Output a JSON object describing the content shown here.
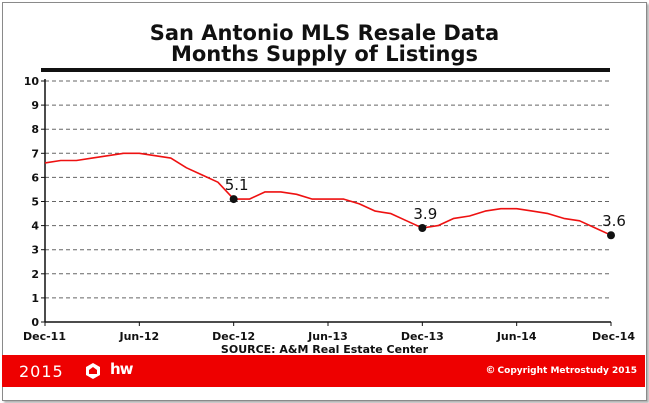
{
  "chart_data": {
    "type": "line",
    "title": "San Antonio MLS Resale Data",
    "subtitle": "Months Supply of Listings",
    "xlabel": "",
    "ylabel": "",
    "ylim": [
      0,
      10
    ],
    "yticks": [
      0,
      1,
      2,
      3,
      4,
      5,
      6,
      7,
      8,
      9,
      10
    ],
    "grid": true,
    "x_tick_labels": [
      "Dec-11",
      "Jun-12",
      "Dec-12",
      "Jun-13",
      "Dec-13",
      "Jun-14",
      "Dec-14"
    ],
    "x": [
      "Dec-11",
      "Jan-12",
      "Feb-12",
      "Mar-12",
      "Apr-12",
      "May-12",
      "Jun-12",
      "Jul-12",
      "Aug-12",
      "Sep-12",
      "Oct-12",
      "Nov-12",
      "Dec-12",
      "Jan-13",
      "Feb-13",
      "Mar-13",
      "Apr-13",
      "May-13",
      "Jun-13",
      "Jul-13",
      "Aug-13",
      "Sep-13",
      "Oct-13",
      "Nov-13",
      "Dec-13",
      "Jan-14",
      "Feb-14",
      "Mar-14",
      "Apr-14",
      "May-14",
      "Jun-14",
      "Jul-14",
      "Aug-14",
      "Sep-14",
      "Oct-14",
      "Nov-14",
      "Dec-14"
    ],
    "series": [
      {
        "color": "#ee1111",
        "values": [
          6.6,
          6.7,
          6.7,
          6.8,
          6.9,
          7.0,
          7.0,
          6.9,
          6.8,
          6.4,
          6.1,
          5.8,
          5.1,
          5.1,
          5.4,
          5.4,
          5.3,
          5.1,
          5.1,
          5.1,
          4.9,
          4.6,
          4.5,
          4.2,
          3.9,
          4.0,
          4.3,
          4.4,
          4.6,
          4.7,
          4.7,
          4.6,
          4.5,
          4.3,
          4.2,
          3.9,
          3.6
        ]
      }
    ],
    "annotations": [
      {
        "x": "Dec-12",
        "y": 5.1,
        "label": "5.1"
      },
      {
        "x": "Dec-13",
        "y": 3.9,
        "label": "3.9"
      },
      {
        "x": "Dec-14",
        "y": 3.6,
        "label": "3.6"
      }
    ],
    "source": "SOURCE:  A&M Real Estate Center"
  },
  "footer": {
    "year": "2015",
    "logo_text": "hw",
    "copyright": "Copyright Metrostudy 2015",
    "brand_color": "#ee0000"
  }
}
